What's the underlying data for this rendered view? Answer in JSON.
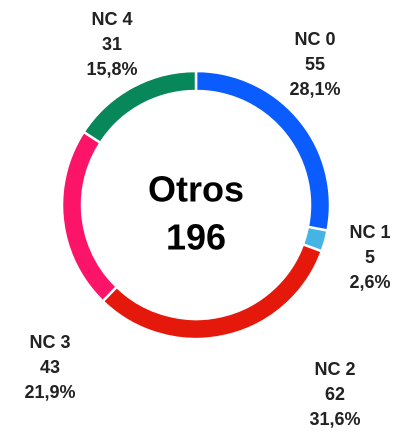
{
  "chart_data": {
    "type": "donut",
    "center_title": "Otros",
    "center_value": 196,
    "categories": [
      "NC 0",
      "NC 1",
      "NC 2",
      "NC 3",
      "NC 4"
    ],
    "values": [
      55,
      5,
      62,
      43,
      31
    ],
    "percent_labels": [
      "28,1%",
      "2,6%",
      "31,6%",
      "21,9%",
      "15,8%"
    ],
    "colors": [
      "#0a5cff",
      "#44b4e4",
      "#e5180c",
      "#fb1468",
      "#08875a"
    ]
  }
}
